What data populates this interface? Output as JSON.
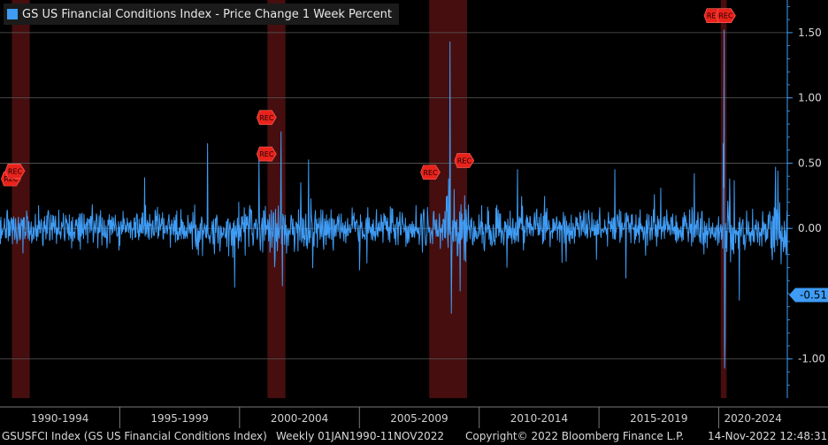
{
  "chart_data": {
    "type": "line",
    "title": "GS US Financial Conditions Index - Price Change 1 Week Percent",
    "x_range": [
      "1990-01-01",
      "2022-11-11"
    ],
    "ylim": [
      -1.3,
      1.75
    ],
    "y_ticks": [
      1.5,
      1.0,
      0.5,
      0.0,
      -1.0
    ],
    "y_tick_labels": [
      "1.50",
      "1.00",
      "0.50",
      "0.00",
      "-1.00"
    ],
    "x_tick_labels": [
      "1990-1994",
      "1995-1999",
      "2000-2004",
      "2005-2009",
      "2010-2014",
      "2015-2019",
      "2020-2024"
    ],
    "last_value": -0.51,
    "last_value_label": "-0.51",
    "grid": true,
    "legend_placement": "top-left",
    "series": [
      {
        "name": "GS US Financial Conditions Index - Price Change 1 Week Percent",
        "color": "#3f9cf5",
        "spikes": [
          {
            "x": "1998-08-28",
            "y": 0.65
          },
          {
            "x": "1999-10-15",
            "y": -0.45
          },
          {
            "x": "2000-10-20",
            "y": 0.55
          },
          {
            "x": "2001-09-21",
            "y": 0.74
          },
          {
            "x": "2001-10-12",
            "y": -0.44
          },
          {
            "x": "2002-07-19",
            "y": 0.35
          },
          {
            "x": "2008-09-19",
            "y": 0.38
          },
          {
            "x": "2008-10-10",
            "y": 1.43
          },
          {
            "x": "2008-10-31",
            "y": -0.65
          },
          {
            "x": "2009-03-13",
            "y": -0.48
          },
          {
            "x": "2011-08-05",
            "y": 0.45
          },
          {
            "x": "2015-08-28",
            "y": 0.45
          },
          {
            "x": "2016-02-12",
            "y": -0.38
          },
          {
            "x": "2018-12-21",
            "y": 0.42
          },
          {
            "x": "2020-03-06",
            "y": 0.65
          },
          {
            "x": "2020-03-20",
            "y": 1.52
          },
          {
            "x": "2020-03-27",
            "y": -1.07
          },
          {
            "x": "2020-04-03",
            "y": -0.85
          },
          {
            "x": "2020-06-12",
            "y": 0.38
          },
          {
            "x": "2020-11-06",
            "y": -0.55
          },
          {
            "x": "2022-05-13",
            "y": 0.47
          },
          {
            "x": "2022-06-17",
            "y": 0.44
          },
          {
            "x": "2022-11-11",
            "y": -0.51
          }
        ]
      }
    ],
    "recessions": [
      {
        "start": "1990-07-01",
        "end": "1991-03-31"
      },
      {
        "start": "2001-03-01",
        "end": "2001-11-30"
      },
      {
        "start": "2007-12-01",
        "end": "2009-06-30"
      },
      {
        "start": "2020-02-01",
        "end": "2020-04-30"
      }
    ],
    "recession_markers": [
      {
        "x": "1990-07-01",
        "y": 0.38,
        "label": "REC"
      },
      {
        "x": "1990-09-01",
        "y": 0.44,
        "label": "REC"
      },
      {
        "x": "2001-03-01",
        "y": 0.85,
        "label": "REC"
      },
      {
        "x": "2001-03-01",
        "y": 0.57,
        "label": "REC"
      },
      {
        "x": "2008-01-01",
        "y": 0.43,
        "label": "REC"
      },
      {
        "x": "2009-06-01",
        "y": 0.52,
        "label": "REC"
      },
      {
        "x": "2019-11-01",
        "y": 1.63,
        "label": "REC"
      },
      {
        "x": "2020-05-01",
        "y": 1.63,
        "label": "REC"
      }
    ]
  },
  "footer": {
    "ticker": "GSUSFCI Index (GS US Financial Conditions Index)",
    "range": "Weekly 01JAN1990-11NOV2022",
    "copyright": "Copyright© 2022 Bloomberg Finance L.P.",
    "timestamp": "14-Nov-2022 12:48:31"
  }
}
